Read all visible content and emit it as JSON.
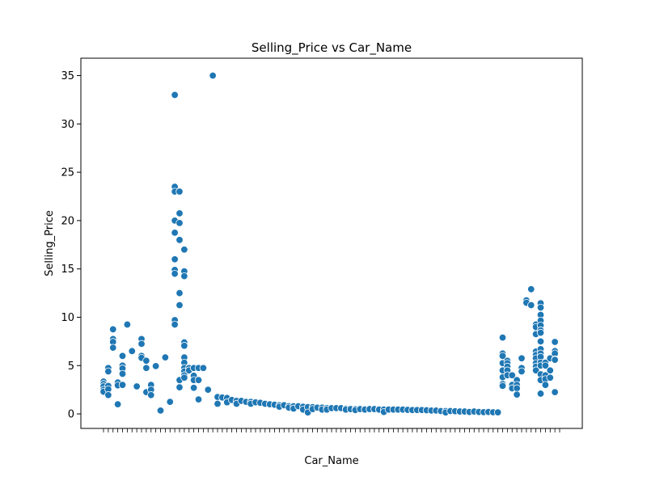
{
  "chart_data": {
    "type": "scatter",
    "title": "Selling_Price vs Car_Name",
    "xlabel": "Car_Name",
    "ylabel": "Selling_Price",
    "ylim": [
      -1.5,
      36.8
    ],
    "yticks": [
      0,
      5,
      10,
      15,
      20,
      25,
      30,
      35
    ],
    "grid": false,
    "marker_color": "#1f77b4",
    "category_count": 97,
    "points": [
      {
        "x": 0,
        "y": 3.35
      },
      {
        "x": 0,
        "y": 3.1
      },
      {
        "x": 0,
        "y": 2.85
      },
      {
        "x": 0,
        "y": 2.5
      },
      {
        "x": 0,
        "y": 2.3
      },
      {
        "x": 1,
        "y": 4.75
      },
      {
        "x": 1,
        "y": 4.4
      },
      {
        "x": 1,
        "y": 2.9
      },
      {
        "x": 1,
        "y": 2.55
      },
      {
        "x": 1,
        "y": 1.95
      },
      {
        "x": 2,
        "y": 8.75
      },
      {
        "x": 2,
        "y": 7.75
      },
      {
        "x": 2,
        "y": 7.45
      },
      {
        "x": 2,
        "y": 6.85
      },
      {
        "x": 3,
        "y": 3.25
      },
      {
        "x": 3,
        "y": 2.95
      },
      {
        "x": 3,
        "y": 1.0
      },
      {
        "x": 4,
        "y": 6.0
      },
      {
        "x": 4,
        "y": 5.0
      },
      {
        "x": 4,
        "y": 4.7
      },
      {
        "x": 4,
        "y": 4.15
      },
      {
        "x": 4,
        "y": 3.0
      },
      {
        "x": 5,
        "y": 9.25
      },
      {
        "x": 6,
        "y": 6.5
      },
      {
        "x": 7,
        "y": 2.85
      },
      {
        "x": 8,
        "y": 7.75
      },
      {
        "x": 8,
        "y": 7.25
      },
      {
        "x": 8,
        "y": 6.0
      },
      {
        "x": 8,
        "y": 5.8
      },
      {
        "x": 9,
        "y": 5.5
      },
      {
        "x": 9,
        "y": 4.75
      },
      {
        "x": 9,
        "y": 2.25
      },
      {
        "x": 10,
        "y": 3.0
      },
      {
        "x": 10,
        "y": 2.5
      },
      {
        "x": 10,
        "y": 1.95
      },
      {
        "x": 11,
        "y": 4.95
      },
      {
        "x": 12,
        "y": 0.35
      },
      {
        "x": 13,
        "y": 5.85
      },
      {
        "x": 14,
        "y": 1.25
      },
      {
        "x": 15,
        "y": 33.0
      },
      {
        "x": 15,
        "y": 23.5
      },
      {
        "x": 15,
        "y": 23.0
      },
      {
        "x": 15,
        "y": 20.0
      },
      {
        "x": 15,
        "y": 18.75
      },
      {
        "x": 15,
        "y": 16.0
      },
      {
        "x": 15,
        "y": 14.9
      },
      {
        "x": 15,
        "y": 14.5
      },
      {
        "x": 15,
        "y": 9.7
      },
      {
        "x": 15,
        "y": 9.25
      },
      {
        "x": 16,
        "y": 23.0
      },
      {
        "x": 16,
        "y": 20.75
      },
      {
        "x": 16,
        "y": 19.75
      },
      {
        "x": 16,
        "y": 18.0
      },
      {
        "x": 16,
        "y": 12.5
      },
      {
        "x": 16,
        "y": 11.25
      },
      {
        "x": 16,
        "y": 3.5
      },
      {
        "x": 16,
        "y": 2.75
      },
      {
        "x": 17,
        "y": 17.0
      },
      {
        "x": 17,
        "y": 14.75
      },
      {
        "x": 17,
        "y": 14.25
      },
      {
        "x": 17,
        "y": 7.4
      },
      {
        "x": 17,
        "y": 7.05
      },
      {
        "x": 17,
        "y": 5.85
      },
      {
        "x": 17,
        "y": 5.3
      },
      {
        "x": 17,
        "y": 4.75
      },
      {
        "x": 17,
        "y": 4.4
      },
      {
        "x": 17,
        "y": 4.0
      },
      {
        "x": 17,
        "y": 3.75
      },
      {
        "x": 18,
        "y": 4.75
      },
      {
        "x": 18,
        "y": 4.5
      },
      {
        "x": 19,
        "y": 4.75
      },
      {
        "x": 19,
        "y": 4.0
      },
      {
        "x": 19,
        "y": 3.95
      },
      {
        "x": 19,
        "y": 3.5
      },
      {
        "x": 19,
        "y": 2.7
      },
      {
        "x": 20,
        "y": 4.75
      },
      {
        "x": 20,
        "y": 3.5
      },
      {
        "x": 20,
        "y": 1.5
      },
      {
        "x": 21,
        "y": 4.75
      },
      {
        "x": 22,
        "y": 2.5
      },
      {
        "x": 23,
        "y": 35.0
      },
      {
        "x": 24,
        "y": 1.75
      },
      {
        "x": 24,
        "y": 1.05
      },
      {
        "x": 25,
        "y": 1.7
      },
      {
        "x": 26,
        "y": 1.65
      },
      {
        "x": 26,
        "y": 1.2
      },
      {
        "x": 27,
        "y": 1.45
      },
      {
        "x": 28,
        "y": 1.35
      },
      {
        "x": 28,
        "y": 1.05
      },
      {
        "x": 29,
        "y": 1.35
      },
      {
        "x": 30,
        "y": 1.25
      },
      {
        "x": 31,
        "y": 1.25
      },
      {
        "x": 31,
        "y": 1.05
      },
      {
        "x": 32,
        "y": 1.2
      },
      {
        "x": 33,
        "y": 1.15
      },
      {
        "x": 34,
        "y": 1.05
      },
      {
        "x": 35,
        "y": 1.0
      },
      {
        "x": 36,
        "y": 0.95
      },
      {
        "x": 37,
        "y": 0.9
      },
      {
        "x": 37,
        "y": 0.75
      },
      {
        "x": 38,
        "y": 0.9
      },
      {
        "x": 39,
        "y": 0.8
      },
      {
        "x": 39,
        "y": 0.65
      },
      {
        "x": 40,
        "y": 0.8
      },
      {
        "x": 40,
        "y": 0.55
      },
      {
        "x": 41,
        "y": 0.8
      },
      {
        "x": 42,
        "y": 0.75
      },
      {
        "x": 42,
        "y": 0.45
      },
      {
        "x": 43,
        "y": 0.7
      },
      {
        "x": 43,
        "y": 0.15
      },
      {
        "x": 44,
        "y": 0.7
      },
      {
        "x": 44,
        "y": 0.5
      },
      {
        "x": 45,
        "y": 0.65
      },
      {
        "x": 46,
        "y": 0.65
      },
      {
        "x": 46,
        "y": 0.45
      },
      {
        "x": 47,
        "y": 0.6
      },
      {
        "x": 47,
        "y": 0.45
      },
      {
        "x": 48,
        "y": 0.6
      },
      {
        "x": 49,
        "y": 0.6
      },
      {
        "x": 50,
        "y": 0.6
      },
      {
        "x": 51,
        "y": 0.55
      },
      {
        "x": 51,
        "y": 0.45
      },
      {
        "x": 52,
        "y": 0.5
      },
      {
        "x": 53,
        "y": 0.5
      },
      {
        "x": 53,
        "y": 0.4
      },
      {
        "x": 54,
        "y": 0.5
      },
      {
        "x": 55,
        "y": 0.5
      },
      {
        "x": 55,
        "y": 0.45
      },
      {
        "x": 56,
        "y": 0.5
      },
      {
        "x": 57,
        "y": 0.5
      },
      {
        "x": 58,
        "y": 0.5
      },
      {
        "x": 58,
        "y": 0.45
      },
      {
        "x": 59,
        "y": 0.45
      },
      {
        "x": 59,
        "y": 0.2
      },
      {
        "x": 60,
        "y": 0.45
      },
      {
        "x": 61,
        "y": 0.45
      },
      {
        "x": 62,
        "y": 0.45
      },
      {
        "x": 63,
        "y": 0.45
      },
      {
        "x": 64,
        "y": 0.42
      },
      {
        "x": 65,
        "y": 0.4
      },
      {
        "x": 66,
        "y": 0.4
      },
      {
        "x": 67,
        "y": 0.4
      },
      {
        "x": 68,
        "y": 0.38
      },
      {
        "x": 69,
        "y": 0.35
      },
      {
        "x": 70,
        "y": 0.35
      },
      {
        "x": 71,
        "y": 0.3
      },
      {
        "x": 72,
        "y": 0.3
      },
      {
        "x": 72,
        "y": 0.15
      },
      {
        "x": 73,
        "y": 0.3
      },
      {
        "x": 74,
        "y": 0.28
      },
      {
        "x": 75,
        "y": 0.25
      },
      {
        "x": 76,
        "y": 0.25
      },
      {
        "x": 77,
        "y": 0.2
      },
      {
        "x": 78,
        "y": 0.25
      },
      {
        "x": 79,
        "y": 0.2
      },
      {
        "x": 80,
        "y": 0.18
      },
      {
        "x": 81,
        "y": 0.2
      },
      {
        "x": 82,
        "y": 0.17
      },
      {
        "x": 83,
        "y": 0.16
      },
      {
        "x": 84,
        "y": 7.9
      },
      {
        "x": 84,
        "y": 6.25
      },
      {
        "x": 84,
        "y": 6.0
      },
      {
        "x": 84,
        "y": 5.25
      },
      {
        "x": 84,
        "y": 4.5
      },
      {
        "x": 84,
        "y": 3.8
      },
      {
        "x": 84,
        "y": 3.1
      },
      {
        "x": 84,
        "y": 2.9
      },
      {
        "x": 85,
        "y": 5.5
      },
      {
        "x": 85,
        "y": 5.25
      },
      {
        "x": 85,
        "y": 4.9
      },
      {
        "x": 85,
        "y": 4.5
      },
      {
        "x": 85,
        "y": 4.0
      },
      {
        "x": 86,
        "y": 4.0
      },
      {
        "x": 86,
        "y": 3.0
      },
      {
        "x": 86,
        "y": 2.65
      },
      {
        "x": 87,
        "y": 3.5
      },
      {
        "x": 87,
        "y": 3.0
      },
      {
        "x": 87,
        "y": 2.65
      },
      {
        "x": 87,
        "y": 2.0
      },
      {
        "x": 88,
        "y": 5.75
      },
      {
        "x": 88,
        "y": 4.75
      },
      {
        "x": 88,
        "y": 4.4
      },
      {
        "x": 89,
        "y": 11.75
      },
      {
        "x": 89,
        "y": 11.5
      },
      {
        "x": 90,
        "y": 12.9
      },
      {
        "x": 90,
        "y": 11.25
      },
      {
        "x": 91,
        "y": 9.25
      },
      {
        "x": 91,
        "y": 8.99
      },
      {
        "x": 91,
        "y": 8.25
      },
      {
        "x": 91,
        "y": 6.45
      },
      {
        "x": 91,
        "y": 6.1
      },
      {
        "x": 91,
        "y": 5.75
      },
      {
        "x": 91,
        "y": 5.25
      },
      {
        "x": 91,
        "y": 4.9
      },
      {
        "x": 91,
        "y": 4.5
      },
      {
        "x": 92,
        "y": 11.45
      },
      {
        "x": 92,
        "y": 11.0
      },
      {
        "x": 92,
        "y": 10.25
      },
      {
        "x": 92,
        "y": 9.65
      },
      {
        "x": 92,
        "y": 9.15
      },
      {
        "x": 92,
        "y": 8.65
      },
      {
        "x": 92,
        "y": 8.4
      },
      {
        "x": 92,
        "y": 7.5
      },
      {
        "x": 92,
        "y": 6.7
      },
      {
        "x": 92,
        "y": 6.25
      },
      {
        "x": 92,
        "y": 5.9
      },
      {
        "x": 92,
        "y": 5.3
      },
      {
        "x": 92,
        "y": 5.0
      },
      {
        "x": 92,
        "y": 4.1
      },
      {
        "x": 92,
        "y": 3.5
      },
      {
        "x": 92,
        "y": 2.1
      },
      {
        "x": 93,
        "y": 5.3
      },
      {
        "x": 93,
        "y": 5.0
      },
      {
        "x": 93,
        "y": 4.0
      },
      {
        "x": 93,
        "y": 3.6
      },
      {
        "x": 93,
        "y": 3.0
      },
      {
        "x": 94,
        "y": 5.75
      },
      {
        "x": 94,
        "y": 4.5
      },
      {
        "x": 94,
        "y": 3.75
      },
      {
        "x": 95,
        "y": 7.45
      },
      {
        "x": 95,
        "y": 6.5
      },
      {
        "x": 95,
        "y": 6.25
      },
      {
        "x": 95,
        "y": 5.65
      },
      {
        "x": 95,
        "y": 5.6
      },
      {
        "x": 95,
        "y": 2.25
      }
    ]
  }
}
